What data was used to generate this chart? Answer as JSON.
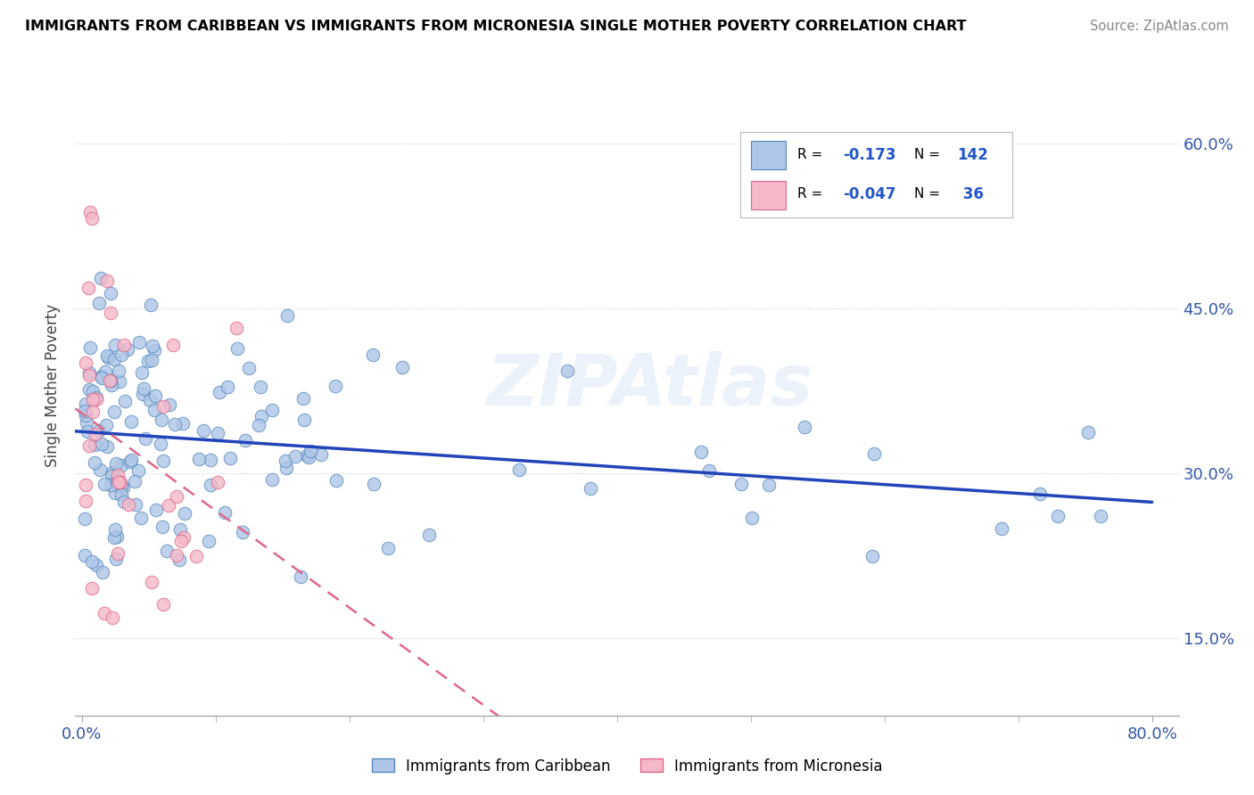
{
  "title": "IMMIGRANTS FROM CARIBBEAN VS IMMIGRANTS FROM MICRONESIA SINGLE MOTHER POVERTY CORRELATION CHART",
  "source": "Source: ZipAtlas.com",
  "ylabel": "Single Mother Poverty",
  "watermark": "ZIPAtlas",
  "caribbean_color": "#aec6e8",
  "caribbean_edge": "#5588bb",
  "micronesia_color": "#f4b8c8",
  "micronesia_edge": "#dd6688",
  "trend_caribbean_color": "#2244bb",
  "trend_micronesia_color": "#dd6688",
  "ytick_positions": [
    0.15,
    0.3,
    0.45,
    0.6
  ],
  "ytick_labels": [
    "15.0%",
    "30.0%",
    "45.0%",
    "60.0%"
  ],
  "xlim": [
    -0.005,
    0.82
  ],
  "ylim": [
    0.08,
    0.68
  ],
  "trend_carib_x0": 0.0,
  "trend_carib_y0": 0.345,
  "trend_carib_x1": 0.8,
  "trend_carib_y1": 0.285,
  "trend_micro_x0": 0.0,
  "trend_micro_y0": 0.355,
  "trend_micro_x1": 0.15,
  "trend_micro_y1": 0.335
}
